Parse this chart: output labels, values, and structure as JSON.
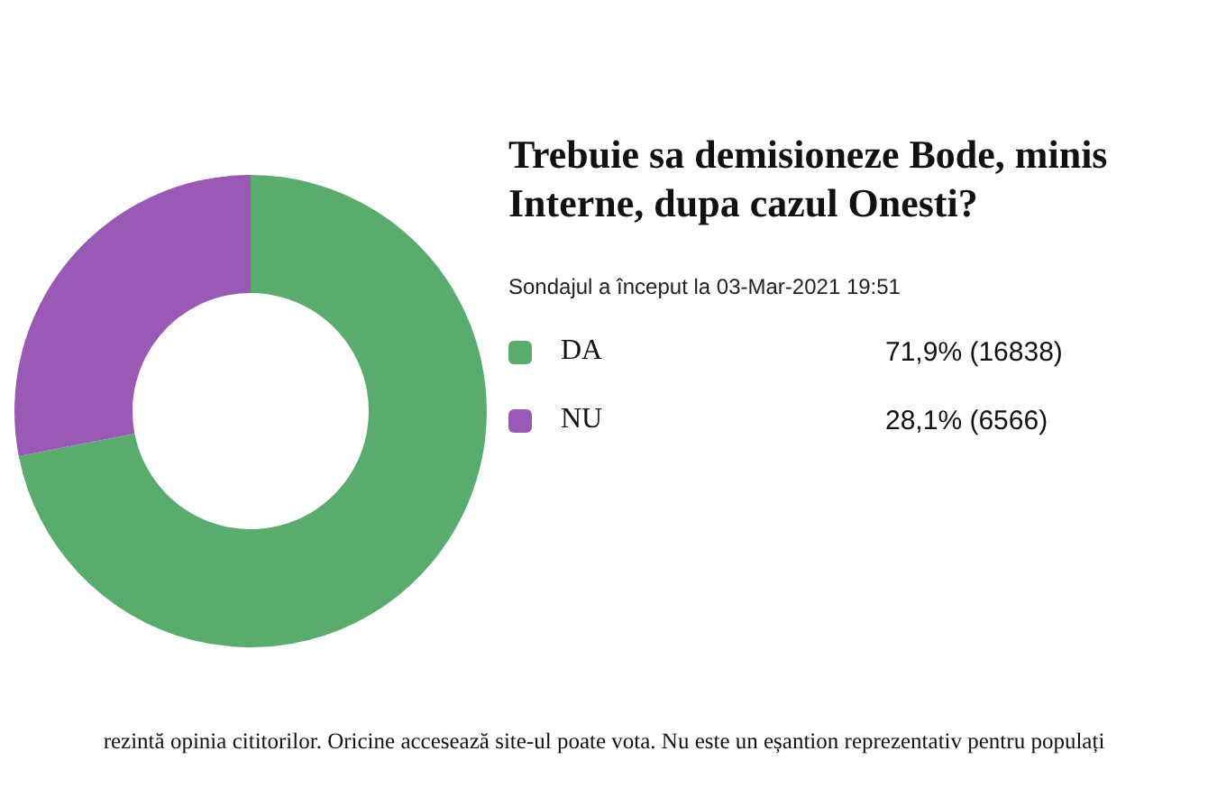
{
  "chart_data": {
    "type": "donut",
    "title": "Trebuie sa demisioneze Bode, minis Interne, dupa cazul Onesti?",
    "subtitle": "Sondajul a început la 03-Mar-2021 19:51",
    "categories": [
      "DA",
      "NU"
    ],
    "values": [
      16838,
      6566
    ],
    "value_labels": [
      "71,9% (16838)",
      "28,1% (6566)"
    ],
    "colors": [
      "#5aab6e",
      "#9b59b6"
    ],
    "legend": "right",
    "annotations": [
      "rezintă opinia cititorilor. Oricine accesează site-ul poate vota. Nu este un eșantion reprezentativ pentru populați"
    ]
  }
}
